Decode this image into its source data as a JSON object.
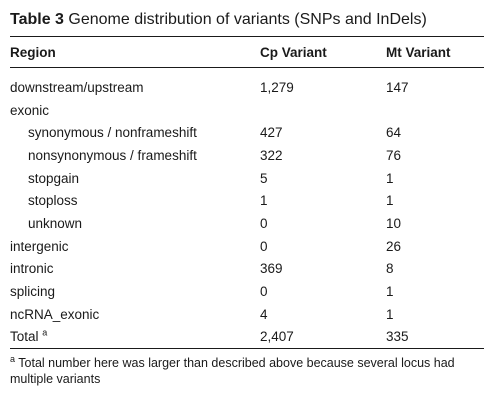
{
  "caption": {
    "label": "Table 3",
    "title": "Genome distribution of variants (SNPs and InDels)"
  },
  "headers": [
    "Region",
    "Cp Variant",
    "Mt Variant"
  ],
  "rows": [
    {
      "region": "downstream/upstream",
      "cp": "1,279",
      "mt": "147",
      "indent": false
    },
    {
      "region": "exonic",
      "cp": "",
      "mt": "",
      "indent": false
    },
    {
      "region": "synonymous / nonframeshift",
      "cp": "427",
      "mt": "64",
      "indent": true
    },
    {
      "region": "nonsynonymous / frameshift",
      "cp": "322",
      "mt": "76",
      "indent": true
    },
    {
      "region": "stopgain",
      "cp": "5",
      "mt": "1",
      "indent": true
    },
    {
      "region": "stoploss",
      "cp": "1",
      "mt": "1",
      "indent": true
    },
    {
      "region": "unknown",
      "cp": "0",
      "mt": "10",
      "indent": true
    },
    {
      "region": "intergenic",
      "cp": "0",
      "mt": "26",
      "indent": false
    },
    {
      "region": "intronic",
      "cp": "369",
      "mt": "8",
      "indent": false
    },
    {
      "region": "splicing",
      "cp": "0",
      "mt": "1",
      "indent": false
    },
    {
      "region": "ncRNA_exonic",
      "cp": "4",
      "mt": "1",
      "indent": false
    },
    {
      "region": "Total",
      "cp": "2,407",
      "mt": "335",
      "indent": false,
      "sup": "a"
    }
  ],
  "footnote": {
    "marker": "a",
    "text": " Total number here was larger than described above because several locus had multiple variants"
  }
}
